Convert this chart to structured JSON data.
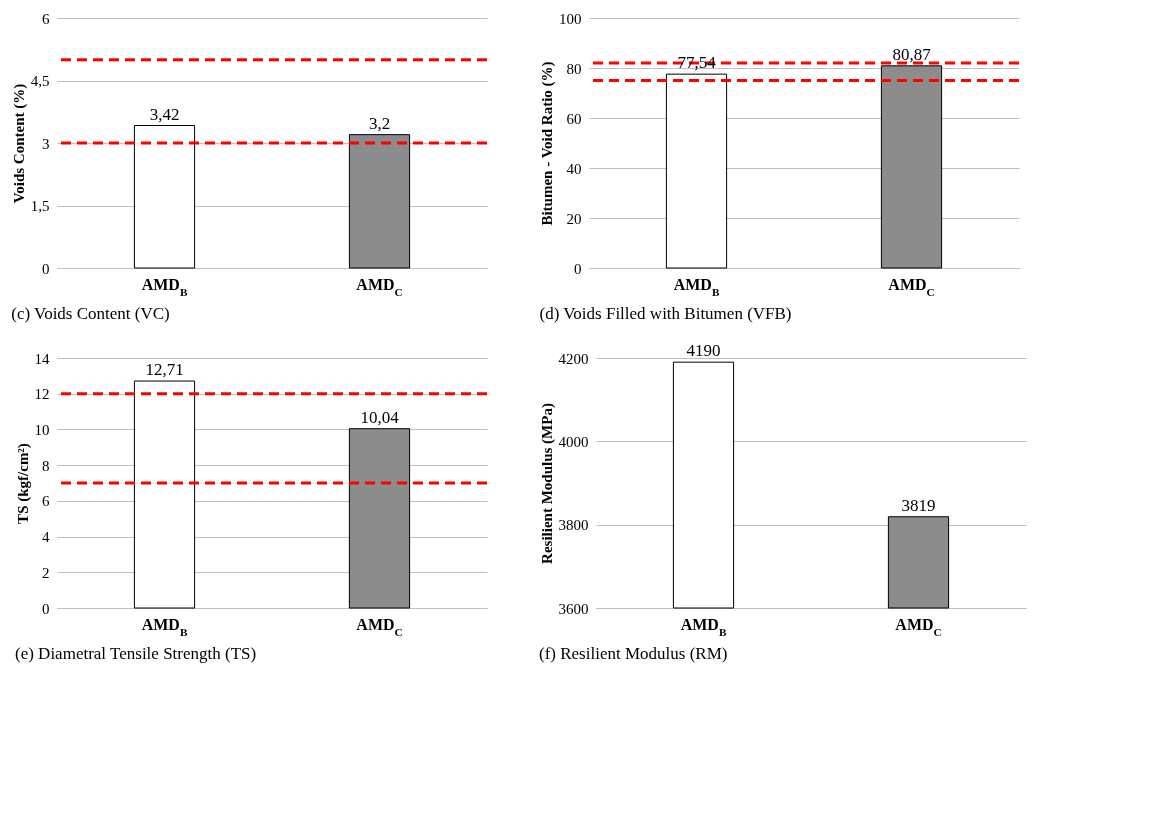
{
  "chart_data": [
    {
      "type": "bar",
      "title": "(c)  Voids Content (VC)",
      "ylabel": "Voids Content (%)",
      "categories": [
        "AMD$_{B}$",
        "AMD$_{C}$"
      ],
      "values": [
        3.42,
        3.2
      ],
      "value_labels": [
        "3,42",
        "3,2"
      ],
      "colors": [
        "#ffffff",
        "#8c8c8c"
      ],
      "ylim": [
        0,
        6
      ],
      "yticks": [
        0,
        {
          "value": 1.5,
          "label": "1,5"
        },
        3,
        {
          "value": 4.5,
          "label": "4,5"
        },
        6
      ],
      "grid": "y",
      "legend": false,
      "ref_lines": [
        {
          "axis": "y",
          "value": 5,
          "color": "#ff0000",
          "line_style": "dashed"
        },
        {
          "axis": "y",
          "value": 3,
          "color": "#ff0000",
          "line_style": "dashed"
        }
      ]
    },
    {
      "type": "bar",
      "title": "(d)  Voids Filled with Bitumen (VFB)",
      "ylabel": "Bitumen - Void Ratio (%)",
      "categories": [
        "AMD$_{B}$",
        "AMD$_{C}$"
      ],
      "values": [
        77.54,
        80.87
      ],
      "value_labels": [
        "77,54",
        "80,87"
      ],
      "colors": [
        "#ffffff",
        "#8c8c8c"
      ],
      "ylim": [
        0,
        100
      ],
      "yticks": [
        0,
        20,
        40,
        60,
        80,
        100
      ],
      "grid": "y",
      "legend": false,
      "ref_lines": [
        {
          "axis": "y",
          "value": 82,
          "color": "#ff0000",
          "line_style": "dashed"
        },
        {
          "axis": "y",
          "value": 75,
          "color": "#ff0000",
          "line_style": "dashed"
        }
      ]
    },
    {
      "type": "bar",
      "title": "(e) Diametral Tensile Strength (TS)",
      "ylabel": "TS (kgf/cm²)",
      "categories": [
        "AMD$_{B}$",
        "AMD$_{C}$"
      ],
      "values": [
        12.71,
        10.04
      ],
      "value_labels": [
        "12,71",
        "10,04"
      ],
      "colors": [
        "#ffffff",
        "#8c8c8c"
      ],
      "ylim": [
        0,
        14
      ],
      "yticks": [
        0,
        2,
        4,
        6,
        8,
        10,
        12,
        14
      ],
      "grid": "y",
      "legend": false,
      "ref_lines": [
        {
          "axis": "y",
          "value": 12,
          "color": "#ff0000",
          "line_style": "dashed"
        },
        {
          "axis": "y",
          "value": 7,
          "color": "#ff0000",
          "line_style": "dashed"
        }
      ]
    },
    {
      "type": "bar",
      "title": "(f) Resilient Modulus (RM)",
      "ylabel": "Resilient Modulus (MPa)",
      "categories": [
        "AMD$_{B}$",
        "AMD$_{C}$"
      ],
      "values": [
        4190,
        3819
      ],
      "data_labels": true,
      "colors": [
        "#ffffff",
        "#8c8c8c"
      ],
      "ylim": [
        3600,
        4200
      ],
      "yticks": [
        3600,
        3800,
        4000,
        4200
      ],
      "grid": "y",
      "legend": false
    }
  ]
}
